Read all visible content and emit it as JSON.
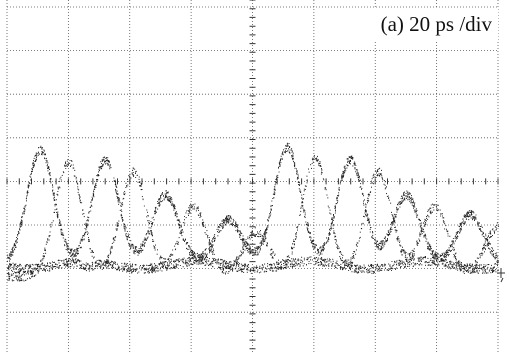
{
  "label": "(a) 20 ps /div"
}
